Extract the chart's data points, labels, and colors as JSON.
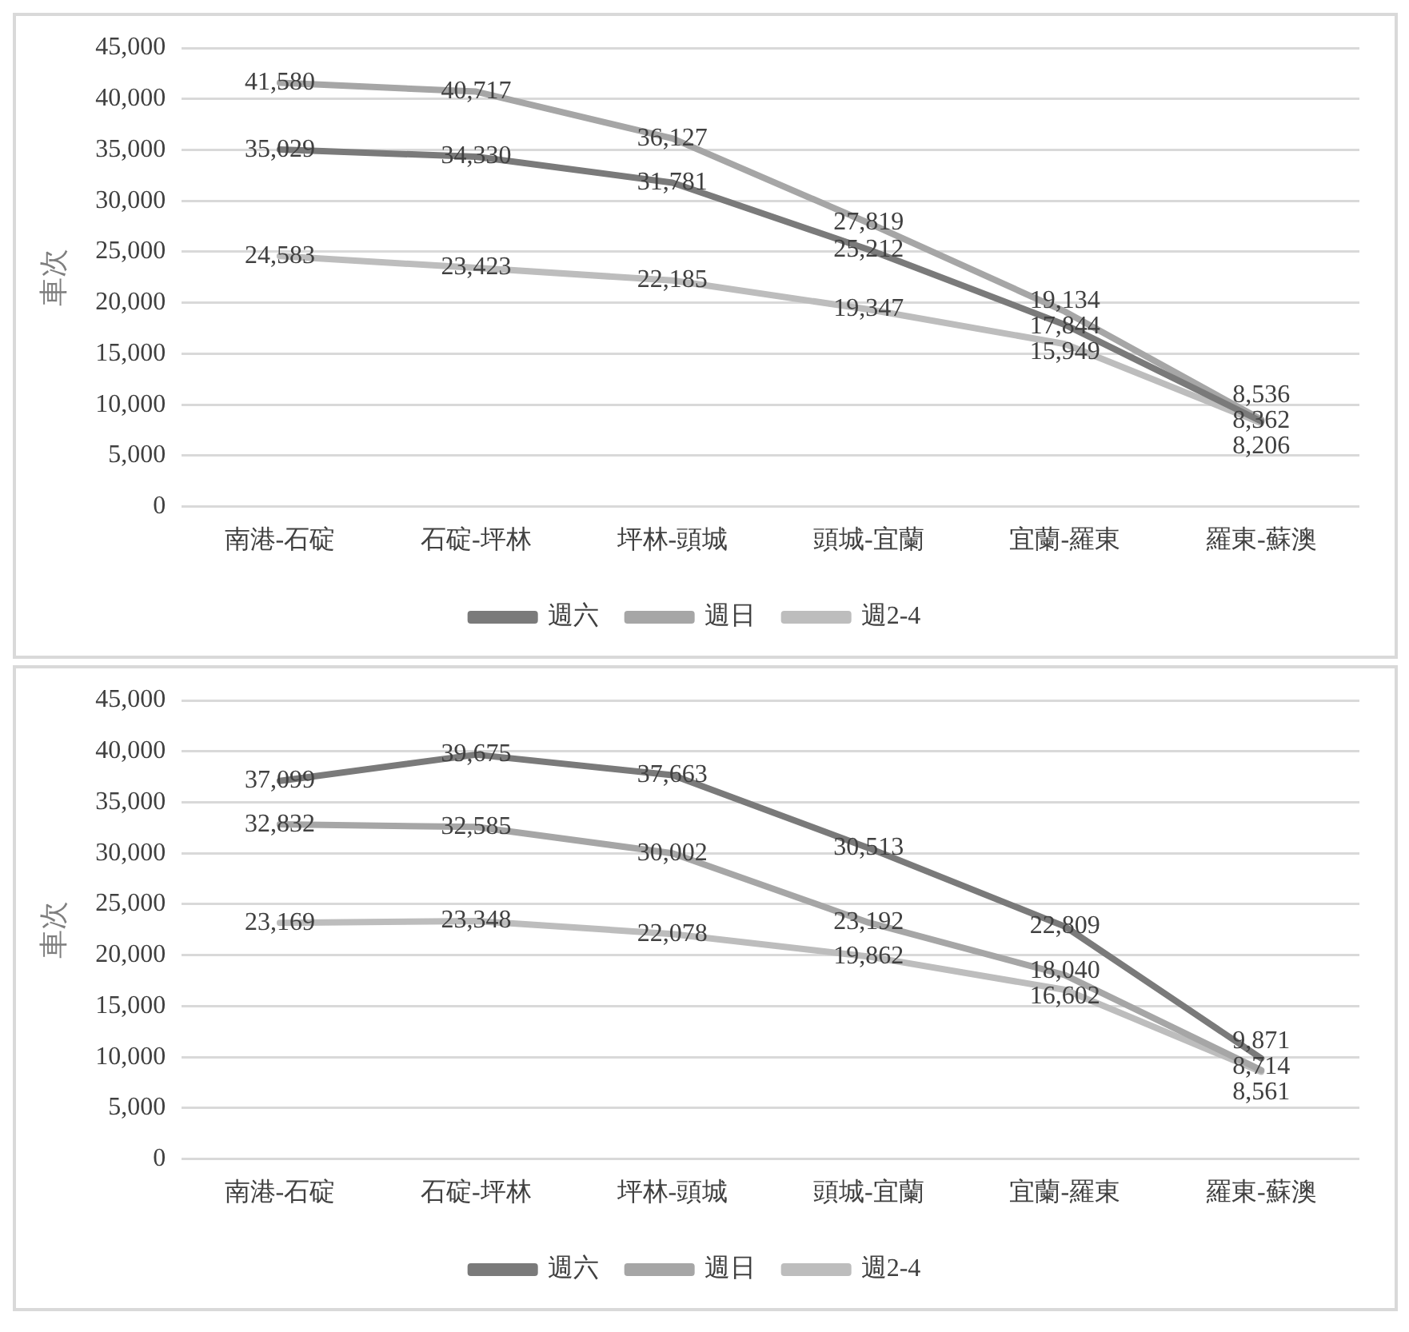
{
  "chart_data": [
    {
      "type": "line",
      "ylabel": "車次",
      "categories": [
        "南港-石碇",
        "石碇-坪林",
        "坪林-頭城",
        "頭城-宜蘭",
        "宜蘭-羅東",
        "羅東-蘇澳"
      ],
      "ylim": [
        0,
        45000
      ],
      "yticks": [
        {
          "value": 0,
          "label": "0"
        },
        {
          "value": 5000,
          "label": "5,000"
        },
        {
          "value": 10000,
          "label": "10,000"
        },
        {
          "value": 15000,
          "label": "15,000"
        },
        {
          "value": 20000,
          "label": "20,000"
        },
        {
          "value": 25000,
          "label": "25,000"
        },
        {
          "value": 30000,
          "label": "30,000"
        },
        {
          "value": 35000,
          "label": "35,000"
        },
        {
          "value": 40000,
          "label": "40,000"
        },
        {
          "value": 45000,
          "label": "45,000"
        }
      ],
      "grid": "y",
      "legend": "bottom",
      "marker": "none",
      "line_style": "solid",
      "series": [
        {
          "name": "週六",
          "color": "#7a7a7a",
          "values": [
            35029,
            34330,
            31781,
            25212,
            17844,
            8362
          ],
          "value_labels": [
            "35,029",
            "34,330",
            "31,781",
            "25,212",
            "17,844",
            "8,362"
          ]
        },
        {
          "name": "週日",
          "color": "#a6a6a6",
          "values": [
            41580,
            40717,
            36127,
            27819,
            19134,
            8536
          ],
          "value_labels": [
            "41,580",
            "40,717",
            "36,127",
            "27,819",
            "19,134",
            "8,536"
          ]
        },
        {
          "name": "週2-4",
          "color": "#bdbdbd",
          "values": [
            24583,
            23423,
            22185,
            19347,
            15949,
            8206
          ],
          "value_labels": [
            "24,583",
            "23,423",
            "22,185",
            "19,347",
            "15,949",
            "8,206"
          ]
        }
      ]
    },
    {
      "type": "line",
      "ylabel": "車次",
      "categories": [
        "南港-石碇",
        "石碇-坪林",
        "坪林-頭城",
        "頭城-宜蘭",
        "宜蘭-羅東",
        "羅東-蘇澳"
      ],
      "ylim": [
        0,
        45000
      ],
      "yticks": [
        {
          "value": 0,
          "label": "0"
        },
        {
          "value": 5000,
          "label": "5,000"
        },
        {
          "value": 10000,
          "label": "10,000"
        },
        {
          "value": 15000,
          "label": "15,000"
        },
        {
          "value": 20000,
          "label": "20,000"
        },
        {
          "value": 25000,
          "label": "25,000"
        },
        {
          "value": 30000,
          "label": "30,000"
        },
        {
          "value": 35000,
          "label": "35,000"
        },
        {
          "value": 40000,
          "label": "40,000"
        },
        {
          "value": 45000,
          "label": "45,000"
        }
      ],
      "grid": "y",
      "legend": "bottom",
      "marker": "none",
      "line_style": "solid",
      "series": [
        {
          "name": "週六",
          "color": "#7a7a7a",
          "values": [
            37099,
            39675,
            37663,
            30513,
            22809,
            9871
          ],
          "value_labels": [
            "37,099",
            "39,675",
            "37,663",
            "30,513",
            "22,809",
            "9,871"
          ]
        },
        {
          "name": "週日",
          "color": "#a6a6a6",
          "values": [
            32832,
            32585,
            30002,
            23192,
            18040,
            8714
          ],
          "value_labels": [
            "32,832",
            "32,585",
            "30,002",
            "23,192",
            "18,040",
            "8,714"
          ]
        },
        {
          "name": "週2-4",
          "color": "#bdbdbd",
          "values": [
            23169,
            23348,
            22078,
            19862,
            16602,
            8561
          ],
          "value_labels": [
            "23,169",
            "23,348",
            "22,078",
            "19,862",
            "16,602",
            "8,561"
          ]
        }
      ]
    }
  ]
}
